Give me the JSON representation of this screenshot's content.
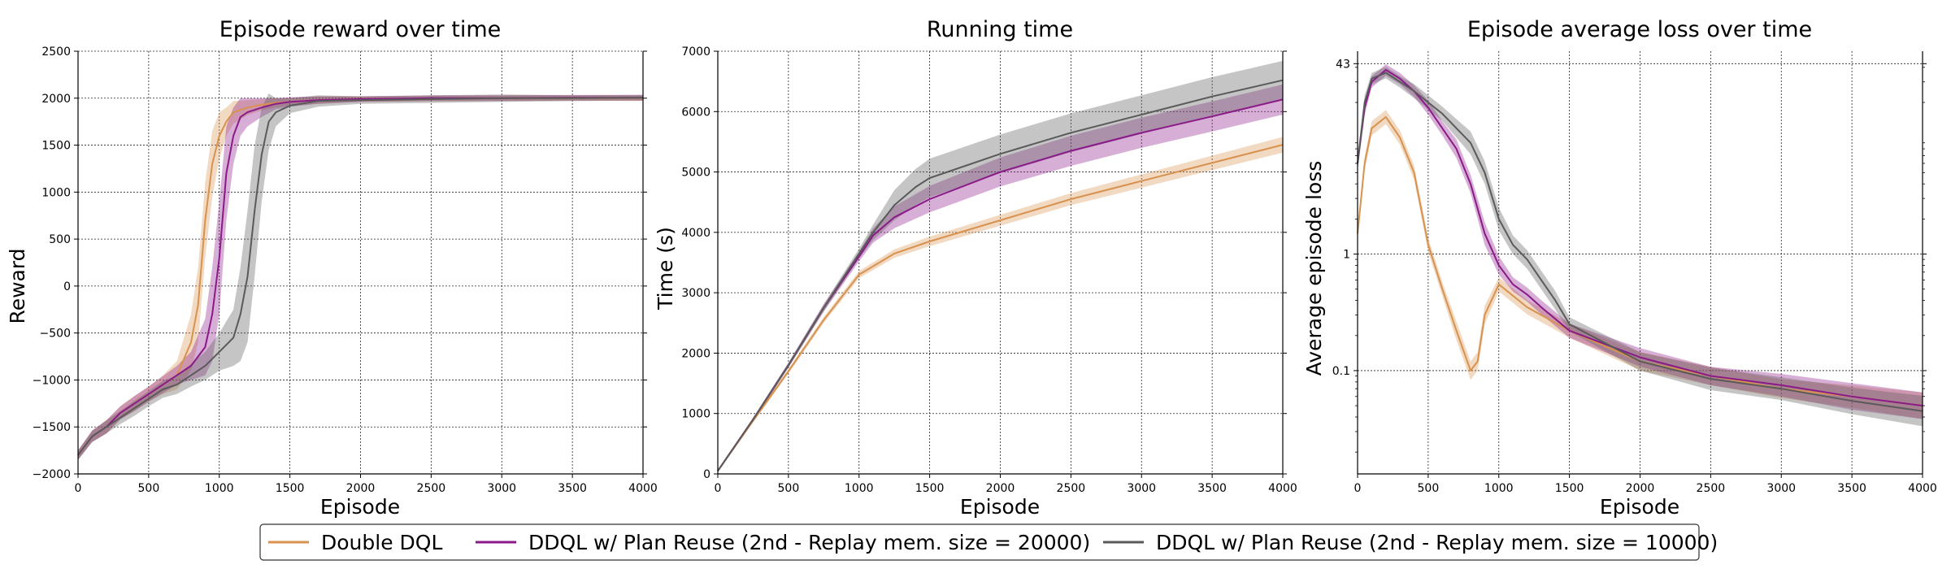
{
  "legend": {
    "items": [
      {
        "label": "Double DQL",
        "color": "#d8924f"
      },
      {
        "label": "DDQL w/ Plan Reuse (2nd - Replay mem. size = 20000)",
        "color": "#8b1a89"
      },
      {
        "label": "DDQL w/ Plan Reuse (2nd - Replay mem. size = 10000)",
        "color": "#5a5a5a"
      }
    ]
  },
  "chart_data": [
    {
      "type": "line",
      "title": "Episode reward over time",
      "xlabel": "Episode",
      "ylabel": "Reward",
      "xlim": [
        0,
        4000
      ],
      "ylim": [
        -2000,
        2500
      ],
      "xticks": [
        0,
        500,
        1000,
        1500,
        2000,
        2500,
        3000,
        3500,
        4000
      ],
      "yticks": [
        -2000,
        -1500,
        -1000,
        -500,
        0,
        500,
        1000,
        1500,
        2000,
        2500
      ],
      "ytick_labels": [
        "−2000",
        "−1500",
        "−1000",
        "−500",
        "0",
        "500",
        "1000",
        "1500",
        "2000",
        "2500"
      ],
      "grid": true,
      "series": [
        {
          "name": "Double DQL",
          "color": "#d8924f",
          "x": [
            0,
            100,
            200,
            300,
            400,
            500,
            600,
            700,
            800,
            850,
            900,
            950,
            1000,
            1050,
            1100,
            1200,
            1300,
            1400,
            1500,
            1700,
            2000,
            2500,
            3000,
            3500,
            4000
          ],
          "y": [
            -1800,
            -1600,
            -1500,
            -1350,
            -1250,
            -1150,
            -1050,
            -950,
            -600,
            -200,
            700,
            1300,
            1600,
            1750,
            1850,
            1900,
            1930,
            1950,
            1960,
            1980,
            1990,
            1995,
            2000,
            2000,
            2000
          ],
          "band": [
            50,
            60,
            70,
            70,
            80,
            80,
            100,
            150,
            300,
            400,
            400,
            350,
            250,
            150,
            120,
            80,
            60,
            50,
            40,
            40,
            30,
            30,
            30,
            30,
            30
          ]
        },
        {
          "name": "DDQL w/ Plan Reuse (2nd - Replay mem. size = 20000)",
          "color": "#8b1a89",
          "x": [
            0,
            100,
            200,
            300,
            400,
            500,
            600,
            700,
            800,
            900,
            950,
            1000,
            1050,
            1100,
            1150,
            1200,
            1300,
            1400,
            1500,
            1700,
            2000,
            2500,
            3000,
            3500,
            4000
          ],
          "y": [
            -1800,
            -1600,
            -1500,
            -1350,
            -1250,
            -1150,
            -1050,
            -950,
            -850,
            -650,
            -300,
            300,
            1200,
            1600,
            1800,
            1850,
            1900,
            1940,
            1960,
            1980,
            1990,
            2000,
            2000,
            2005,
            2005
          ],
          "band": [
            50,
            60,
            70,
            70,
            80,
            80,
            90,
            100,
            150,
            300,
            500,
            600,
            500,
            300,
            200,
            150,
            100,
            60,
            50,
            40,
            30,
            30,
            30,
            30,
            30
          ]
        },
        {
          "name": "DDQL w/ Plan Reuse (2nd - Replay mem. size = 10000)",
          "color": "#5a5a5a",
          "x": [
            0,
            100,
            200,
            300,
            400,
            500,
            600,
            700,
            800,
            900,
            1000,
            1100,
            1150,
            1200,
            1250,
            1300,
            1350,
            1400,
            1500,
            1700,
            2000,
            2500,
            3000,
            3500,
            4000
          ],
          "y": [
            -1800,
            -1600,
            -1500,
            -1400,
            -1300,
            -1200,
            -1100,
            -1050,
            -950,
            -850,
            -700,
            -550,
            -300,
            100,
            800,
            1400,
            1750,
            1850,
            1920,
            1970,
            1980,
            1990,
            2000,
            2000,
            2005
          ],
          "band": [
            50,
            60,
            70,
            70,
            80,
            80,
            90,
            100,
            120,
            150,
            200,
            300,
            500,
            700,
            700,
            500,
            300,
            150,
            80,
            60,
            40,
            40,
            40,
            30,
            30
          ]
        }
      ]
    },
    {
      "type": "line",
      "title": "Running time",
      "xlabel": "Episode",
      "ylabel": "Time (s)",
      "xlim": [
        0,
        4000
      ],
      "ylim": [
        0,
        7000
      ],
      "xticks": [
        0,
        500,
        1000,
        1500,
        2000,
        2500,
        3000,
        3500,
        4000
      ],
      "yticks": [
        0,
        1000,
        2000,
        3000,
        4000,
        5000,
        6000,
        7000
      ],
      "ytick_labels": [
        "0",
        "1000",
        "2000",
        "3000",
        "4000",
        "5000",
        "6000",
        "7000"
      ],
      "grid": true,
      "series": [
        {
          "name": "Double DQL",
          "color": "#d8924f",
          "x": [
            0,
            250,
            500,
            750,
            1000,
            1250,
            1500,
            2000,
            2500,
            3000,
            3500,
            4000
          ],
          "y": [
            50,
            880,
            1700,
            2550,
            3300,
            3650,
            3850,
            4200,
            4550,
            4850,
            5150,
            5450
          ],
          "band": [
            20,
            30,
            40,
            50,
            60,
            70,
            80,
            90,
            100,
            110,
            120,
            130
          ]
        },
        {
          "name": "DDQL w/ Plan Reuse (2nd - Replay mem. size = 20000)",
          "color": "#8b1a89",
          "x": [
            0,
            250,
            500,
            750,
            1000,
            1100,
            1250,
            1500,
            2000,
            2500,
            3000,
            3500,
            4000
          ],
          "y": [
            50,
            900,
            1800,
            2750,
            3600,
            3950,
            4250,
            4550,
            5000,
            5350,
            5650,
            5920,
            6200
          ],
          "band": [
            20,
            30,
            40,
            60,
            80,
            120,
            180,
            220,
            240,
            250,
            250,
            250,
            250
          ]
        },
        {
          "name": "DDQL w/ Plan Reuse (2nd - Replay mem. size = 10000)",
          "color": "#5a5a5a",
          "x": [
            0,
            250,
            500,
            750,
            1000,
            1100,
            1250,
            1400,
            1500,
            2000,
            2500,
            3000,
            3500,
            4000
          ],
          "y": [
            50,
            900,
            1800,
            2750,
            3650,
            4000,
            4450,
            4750,
            4900,
            5300,
            5650,
            5950,
            6250,
            6520
          ],
          "band": [
            20,
            30,
            40,
            60,
            80,
            130,
            250,
            300,
            320,
            320,
            320,
            320,
            320,
            320
          ]
        }
      ]
    },
    {
      "type": "line",
      "title": "Episode average loss over time",
      "xlabel": "Episode",
      "ylabel": "Average episode loss",
      "xlim": [
        0,
        4000
      ],
      "ylim": [
        0.013,
        55
      ],
      "yscale": "log",
      "xticks": [
        0,
        500,
        1000,
        1500,
        2000,
        2500,
        3000,
        3500,
        4000
      ],
      "yticks": [
        0.1,
        1,
        43
      ],
      "ytick_labels": [
        "0.1",
        "1",
        "43"
      ],
      "grid": true,
      "series": [
        {
          "name": "Double DQL",
          "color": "#d8924f",
          "x": [
            0,
            50,
            100,
            200,
            300,
            400,
            500,
            600,
            700,
            800,
            850,
            900,
            1000,
            1200,
            1500,
            2000,
            2500,
            3000,
            3500,
            4000
          ],
          "y": [
            1.5,
            6,
            12,
            15,
            10,
            5,
            1.2,
            0.5,
            0.22,
            0.1,
            0.12,
            0.3,
            0.55,
            0.35,
            0.22,
            0.12,
            0.09,
            0.07,
            0.06,
            0.05
          ],
          "band": [
            0.15,
            0.15,
            0.15,
            0.15,
            0.15,
            0.15,
            0.15,
            0.15,
            0.2,
            0.2,
            0.2,
            0.2,
            0.15,
            0.15,
            0.15,
            0.2,
            0.2,
            0.2,
            0.25,
            0.3
          ]
        },
        {
          "name": "DDQL w/ Plan Reuse (2nd - Replay mem. size = 20000)",
          "color": "#8b1a89",
          "x": [
            0,
            50,
            100,
            200,
            300,
            400,
            500,
            600,
            700,
            800,
            900,
            1000,
            1100,
            1200,
            1300,
            1500,
            2000,
            2500,
            3000,
            3500,
            4000
          ],
          "y": [
            6,
            18,
            30,
            38,
            32,
            25,
            18,
            12,
            8,
            4,
            1.5,
            0.8,
            0.55,
            0.45,
            0.35,
            0.22,
            0.13,
            0.09,
            0.075,
            0.06,
            0.05
          ],
          "band": [
            0.15,
            0.15,
            0.12,
            0.12,
            0.12,
            0.12,
            0.15,
            0.15,
            0.2,
            0.2,
            0.25,
            0.2,
            0.15,
            0.15,
            0.15,
            0.15,
            0.2,
            0.2,
            0.25,
            0.3,
            0.3
          ]
        },
        {
          "name": "DDQL w/ Plan Reuse (2nd - Replay mem. size = 10000)",
          "color": "#5a5a5a",
          "x": [
            0,
            50,
            100,
            200,
            300,
            400,
            500,
            600,
            700,
            800,
            900,
            1000,
            1100,
            1200,
            1300,
            1400,
            1500,
            2000,
            2500,
            3000,
            3500,
            4000
          ],
          "y": [
            6,
            20,
            32,
            36,
            30,
            25,
            20,
            16,
            12,
            9,
            5,
            2,
            1.2,
            0.9,
            0.6,
            0.4,
            0.25,
            0.12,
            0.085,
            0.07,
            0.055,
            0.045
          ],
          "band": [
            0.15,
            0.15,
            0.12,
            0.12,
            0.12,
            0.15,
            0.15,
            0.15,
            0.2,
            0.25,
            0.25,
            0.25,
            0.2,
            0.2,
            0.2,
            0.2,
            0.15,
            0.2,
            0.25,
            0.25,
            0.3,
            0.35
          ]
        }
      ]
    }
  ]
}
